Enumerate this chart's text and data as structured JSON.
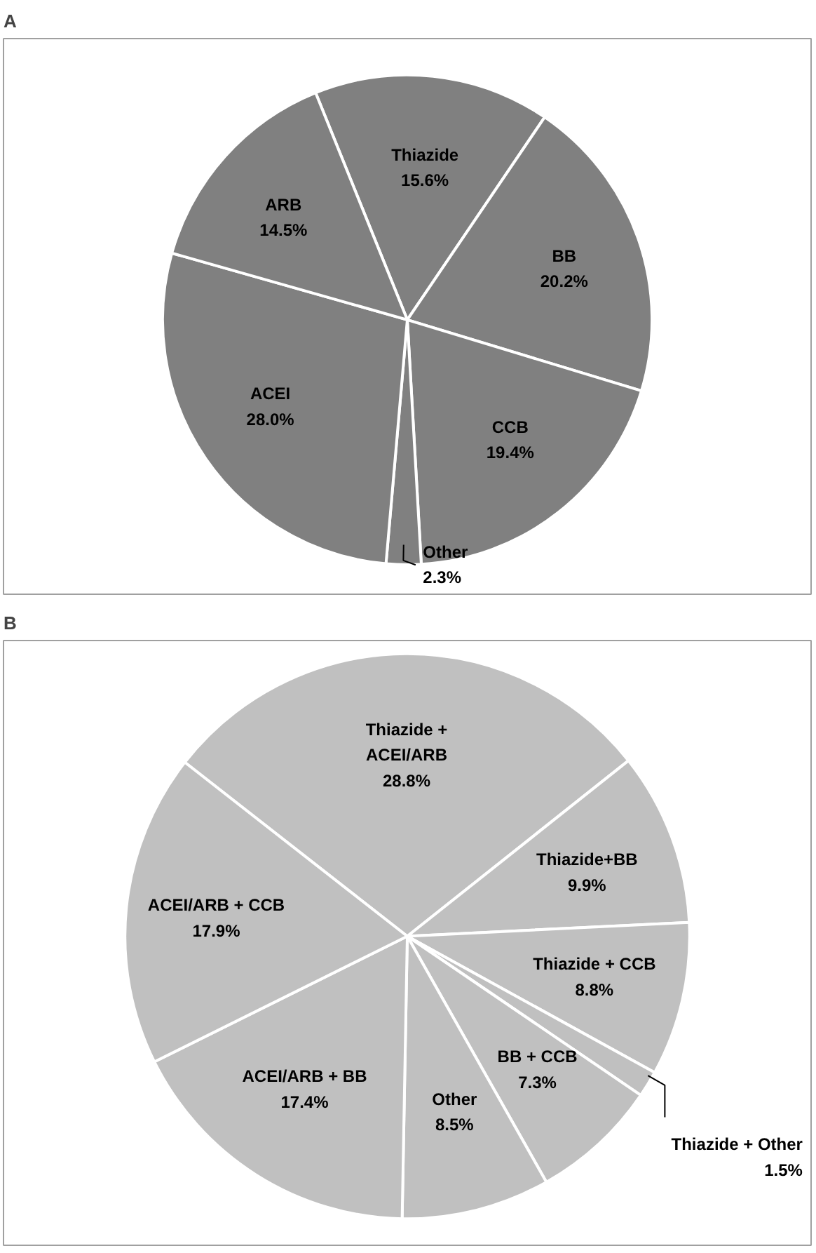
{
  "chart_data": [
    {
      "type": "pie",
      "title": "A",
      "categories": [
        "Thiazide",
        "BB",
        "CCB",
        "Other",
        "ACEI",
        "ARB"
      ],
      "values": [
        15.6,
        20.2,
        19.4,
        2.3,
        28.0,
        14.5
      ],
      "colors": [
        "#808080",
        "#808080",
        "#808080",
        "#808080",
        "#808080",
        "#808080"
      ],
      "value_labels": [
        "15.6%",
        "20.2%",
        "19.4%",
        "2.3%",
        "28.0%",
        "14.5%"
      ]
    },
    {
      "type": "pie",
      "title": "B",
      "categories": [
        "Thiazide + ACEI/ARB",
        "Thiazide+BB",
        "Thiazide + CCB",
        "Thiazide + Other",
        "BB + CCB",
        "Other",
        "ACEI/ARB + BB",
        "ACEI/ARB + CCB"
      ],
      "values": [
        28.8,
        9.9,
        8.8,
        1.5,
        7.3,
        8.5,
        17.4,
        17.9
      ],
      "colors": [
        "#c0c0c0",
        "#c0c0c0",
        "#c0c0c0",
        "#c0c0c0",
        "#c0c0c0",
        "#c0c0c0",
        "#c0c0c0",
        "#c0c0c0"
      ],
      "value_labels": [
        "28.8%",
        "9.9%",
        "8.8%",
        "1.5%",
        "7.3%",
        "8.5%",
        "17.4%",
        "17.9%"
      ]
    }
  ]
}
